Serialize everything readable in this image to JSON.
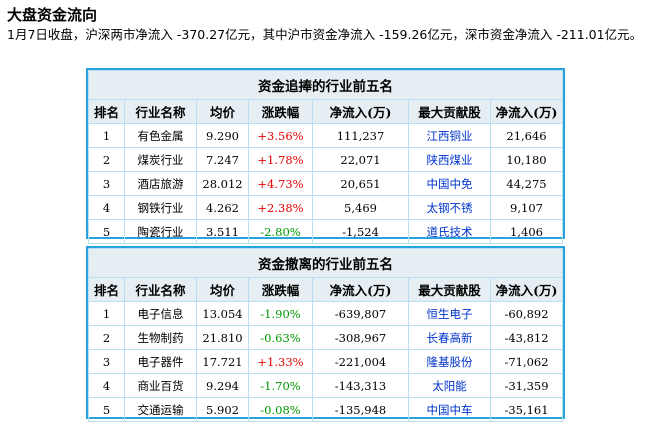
{
  "heading": "大盘资金流向",
  "intro": "1月7日收盘，沪深两市净流入 -370.27亿元，其中沪市资金净流入 -159.26亿元，深市资金净流入 -211.01亿元。",
  "columns": [
    "排名",
    "行业名称",
    "均价",
    "涨跌幅",
    "净流入(万)",
    "最大贡献股",
    "净流入(万)"
  ],
  "colors": {
    "up": "#e60000",
    "down": "#009900",
    "stock_link": "#0033cc",
    "panel_border": "#29a3de",
    "header_bg": "#e6eef3"
  },
  "inflow_table": {
    "title": "资金追捧的行业前五名",
    "rows": [
      {
        "rank": "1",
        "industry": "有色金属",
        "avg_price": "9.290",
        "change": "+3.56%",
        "direction": "up",
        "net_inflow": "111,237",
        "top_stock": "江西铜业",
        "top_stock_inflow": "21,646"
      },
      {
        "rank": "2",
        "industry": "煤炭行业",
        "avg_price": "7.247",
        "change": "+1.78%",
        "direction": "up",
        "net_inflow": "22,071",
        "top_stock": "陕西煤业",
        "top_stock_inflow": "10,180"
      },
      {
        "rank": "3",
        "industry": "酒店旅游",
        "avg_price": "28.012",
        "change": "+4.73%",
        "direction": "up",
        "net_inflow": "20,651",
        "top_stock": "中国中免",
        "top_stock_inflow": "44,275"
      },
      {
        "rank": "4",
        "industry": "钢铁行业",
        "avg_price": "4.262",
        "change": "+2.38%",
        "direction": "up",
        "net_inflow": "5,469",
        "top_stock": "太钢不锈",
        "top_stock_inflow": "9,107"
      },
      {
        "rank": "5",
        "industry": "陶瓷行业",
        "avg_price": "3.511",
        "change": "-2.80%",
        "direction": "down",
        "net_inflow": "-1,524",
        "top_stock": "道氏技术",
        "top_stock_inflow": "1,406"
      }
    ]
  },
  "outflow_table": {
    "title": "资金撤离的行业前五名",
    "rows": [
      {
        "rank": "1",
        "industry": "电子信息",
        "avg_price": "13.054",
        "change": "-1.90%",
        "direction": "down",
        "net_inflow": "-639,807",
        "top_stock": "恒生电子",
        "top_stock_inflow": "-60,892"
      },
      {
        "rank": "2",
        "industry": "生物制药",
        "avg_price": "21.810",
        "change": "-0.63%",
        "direction": "down",
        "net_inflow": "-308,967",
        "top_stock": "长春高新",
        "top_stock_inflow": "-43,812"
      },
      {
        "rank": "3",
        "industry": "电子器件",
        "avg_price": "17.721",
        "change": "+1.33%",
        "direction": "up",
        "net_inflow": "-221,004",
        "top_stock": "隆基股份",
        "top_stock_inflow": "-71,062"
      },
      {
        "rank": "4",
        "industry": "商业百货",
        "avg_price": "9.294",
        "change": "-1.70%",
        "direction": "down",
        "net_inflow": "-143,313",
        "top_stock": "太阳能",
        "top_stock_inflow": "-31,359"
      },
      {
        "rank": "5",
        "industry": "交通运输",
        "avg_price": "5.902",
        "change": "-0.08%",
        "direction": "down",
        "net_inflow": "-135,948",
        "top_stock": "中国中车",
        "top_stock_inflow": "-35,161"
      }
    ]
  }
}
